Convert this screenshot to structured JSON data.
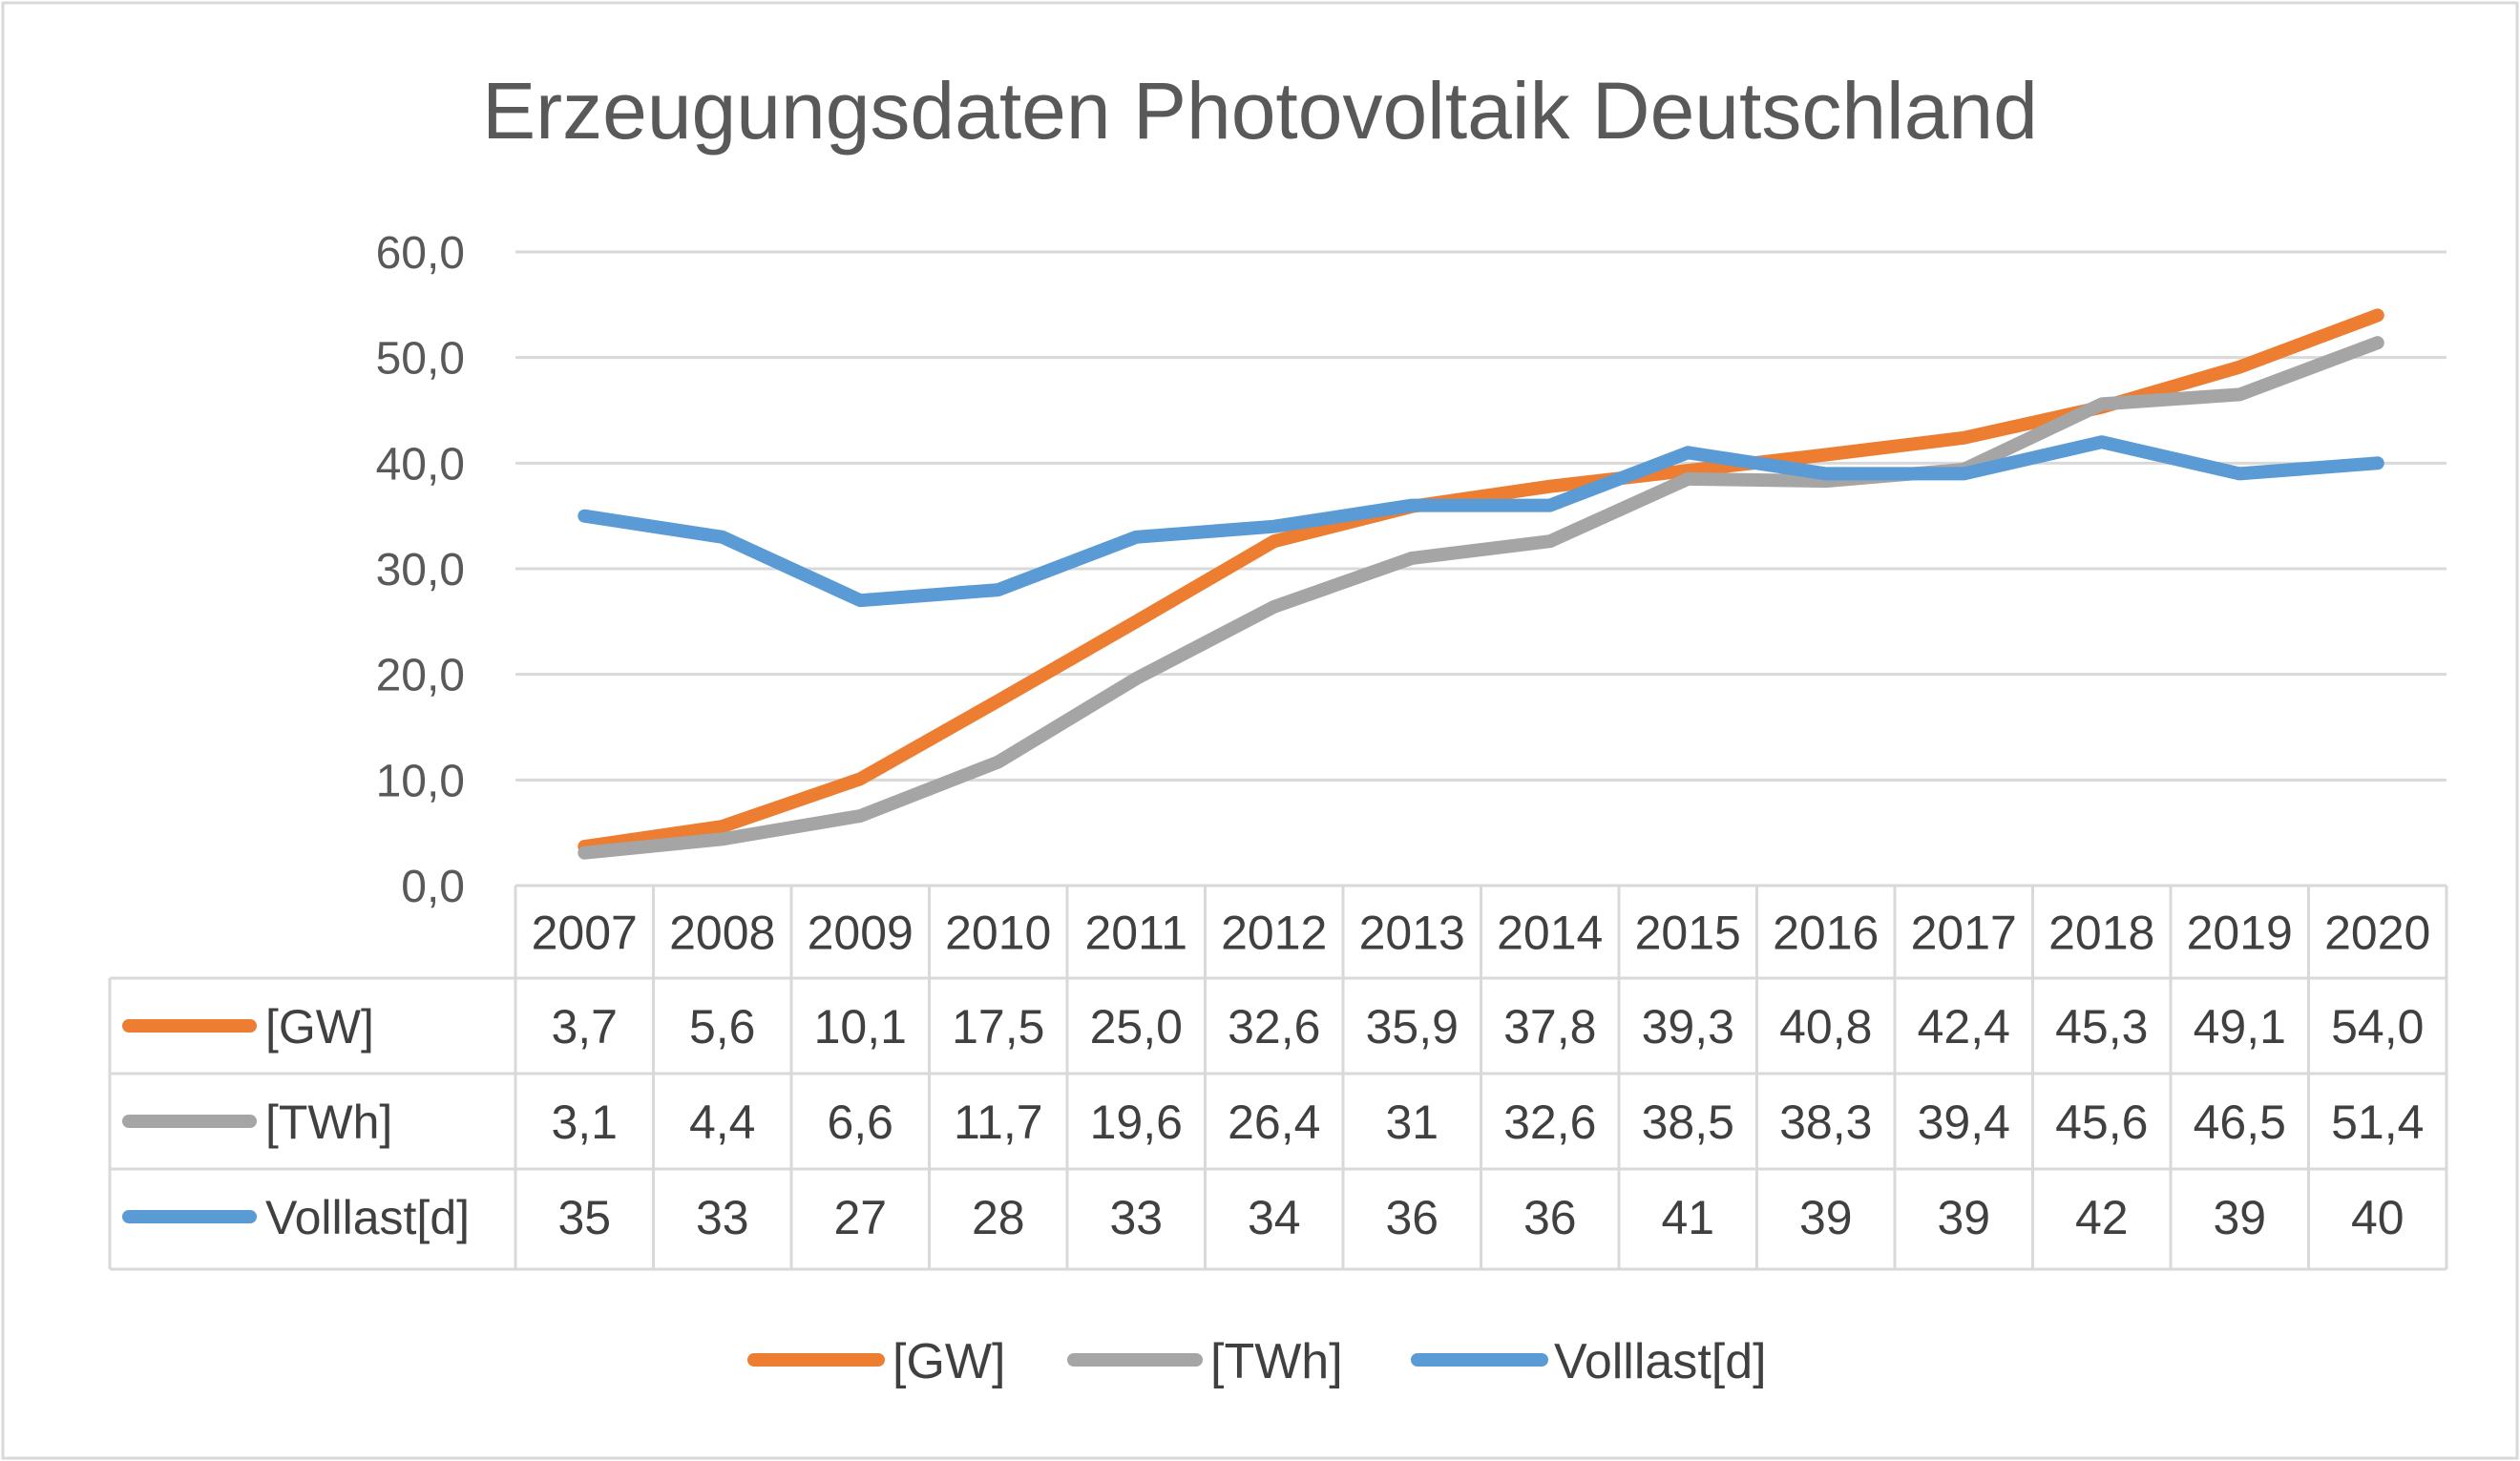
{
  "chart_data": {
    "type": "line",
    "title": "Erzeugungsdaten Photovoltaik Deutschland",
    "x": [
      "2007",
      "2008",
      "2009",
      "2010",
      "2011",
      "2012",
      "2013",
      "2014",
      "2015",
      "2016",
      "2017",
      "2018",
      "2019",
      "2020"
    ],
    "ylim": [
      0,
      60
    ],
    "yticks": [
      "0,0",
      "10,0",
      "20,0",
      "30,0",
      "40,0",
      "50,0",
      "60,0"
    ],
    "grid": true,
    "legend_position": "bottom",
    "data_table": true,
    "series": [
      {
        "name": "[GW]",
        "color": "#ED7D31",
        "values": [
          3.7,
          5.6,
          10.1,
          17.5,
          25.0,
          32.6,
          35.9,
          37.8,
          39.3,
          40.8,
          42.4,
          45.3,
          49.1,
          54.0
        ],
        "labels": [
          "3,7",
          "5,6",
          "10,1",
          "17,5",
          "25,0",
          "32,6",
          "35,9",
          "37,8",
          "39,3",
          "40,8",
          "42,4",
          "45,3",
          "49,1",
          "54,0"
        ]
      },
      {
        "name": "[TWh]",
        "color": "#A5A5A5",
        "values": [
          3.1,
          4.4,
          6.6,
          11.7,
          19.6,
          26.4,
          31,
          32.6,
          38.5,
          38.3,
          39.4,
          45.6,
          46.5,
          51.4
        ],
        "labels": [
          "3,1",
          "4,4",
          "6,6",
          "11,7",
          "19,6",
          "26,4",
          "31",
          "32,6",
          "38,5",
          "38,3",
          "39,4",
          "45,6",
          "46,5",
          "51,4"
        ]
      },
      {
        "name": "Volllast[d]",
        "color": "#5B9BD5",
        "values": [
          35,
          33,
          27,
          28,
          33,
          34,
          36,
          36,
          41,
          39,
          39,
          42,
          39,
          40
        ],
        "labels": [
          "35",
          "33",
          "27",
          "28",
          "33",
          "34",
          "36",
          "36",
          "41",
          "39",
          "39",
          "42",
          "39",
          "40"
        ]
      }
    ]
  }
}
